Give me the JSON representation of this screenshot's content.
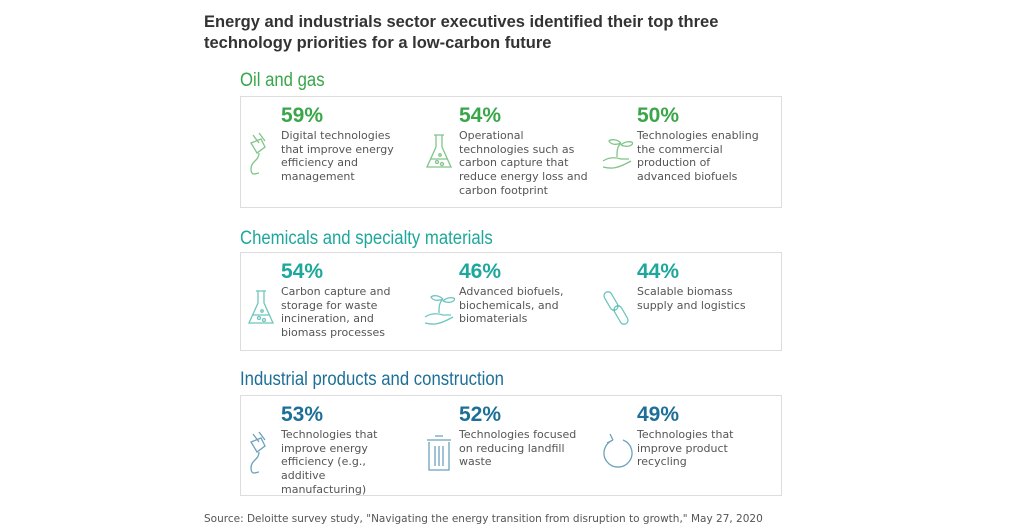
{
  "title": "Energy and industrials sector executives identified their top three technology priorities for a low-carbon future",
  "sections": [
    {
      "heading": "Oil and gas",
      "color": "#3aa64a",
      "items": [
        {
          "pct": "59%",
          "text": "Digital technologies that improve energy efficiency and management",
          "icon": "plug-icon"
        },
        {
          "pct": "54%",
          "text": "Operational technologies such as carbon capture that reduce energy loss and carbon footprint",
          "icon": "flask-icon"
        },
        {
          "pct": "50%",
          "text": "Technologies enabling the commercial production of advanced biofuels",
          "icon": "plant-in-hand-icon"
        }
      ]
    },
    {
      "heading": "Chemicals and specialty materials",
      "color": "#1ea79b",
      "items": [
        {
          "pct": "54%",
          "text": "Carbon capture and storage for waste incineration, and biomass processes",
          "icon": "flask-icon"
        },
        {
          "pct": "46%",
          "text": "Advanced biofuels, biochemicals, and biomaterials",
          "icon": "plant-in-hand-icon"
        },
        {
          "pct": "44%",
          "text": "Scalable biomass supply and logistics",
          "icon": "chain-link-icon"
        }
      ]
    },
    {
      "heading": "Industrial products and construction",
      "color": "#1d6f98",
      "items": [
        {
          "pct": "53%",
          "text": "Technologies that improve energy efficiency (e.g., additive manufacturing)",
          "icon": "plug-icon"
        },
        {
          "pct": "52%",
          "text": "Technologies focused on reducing landfill waste",
          "icon": "trash-can-icon"
        },
        {
          "pct": "49%",
          "text": "Technologies that improve product recycling",
          "icon": "recycle-arrow-icon"
        }
      ]
    }
  ],
  "source": "Source: Deloitte survey study, \"Navigating the energy transition from disruption to growth,\" May 27, 2020"
}
